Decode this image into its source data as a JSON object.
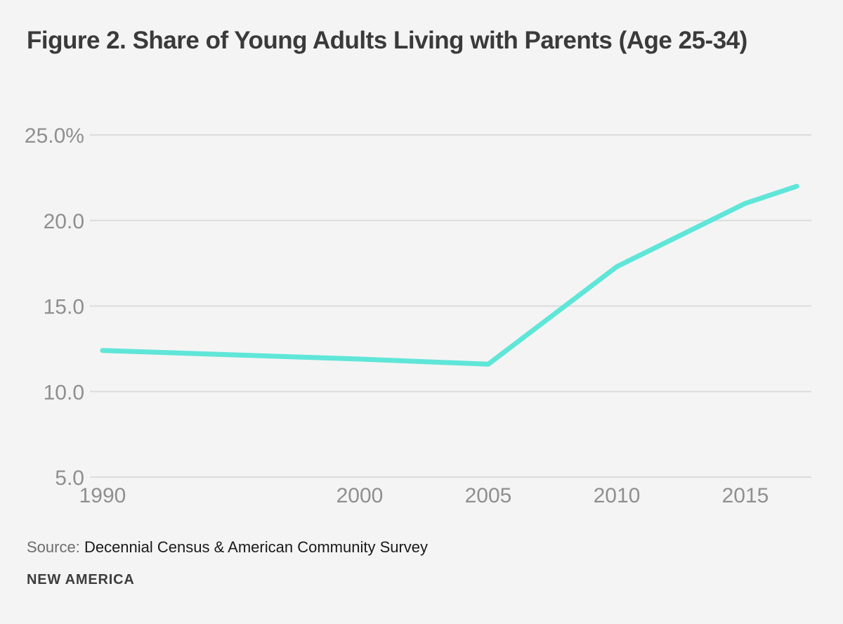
{
  "page": {
    "title": "Figure 2. Share of Young Adults Living with Parents (Age 25-34)",
    "source_label": "Source:",
    "source_text": "Decennial Census & American Community Survey",
    "logo_text": "NEW AMERICA"
  },
  "colors": {
    "background": "#f4f4f4",
    "line": "#5fe6d8",
    "grid": "#dcdcdc",
    "tick_label": "#8f8f8f",
    "title": "#3a3a3a",
    "source_label": "#6d6d6d",
    "source_text": "#191919",
    "logo": "#3d3d3d"
  },
  "chart_data": {
    "type": "line",
    "title": "Figure 2. Share of Young Adults Living with Parents (Age 25-34)",
    "series": [
      {
        "name": "Share of young adults (age 25-34) living with parents (%)",
        "x": [
          1990,
          2000,
          2005,
          2010,
          2015,
          2017
        ],
        "values": [
          12.4,
          11.9,
          11.6,
          17.3,
          21.0,
          22.0
        ]
      }
    ],
    "xlabel": "",
    "ylabel": "",
    "xlim": [
      1990,
      2017.6
    ],
    "ylim": [
      5,
      25
    ],
    "yticks": [
      {
        "value": 5,
        "label": "5.0"
      },
      {
        "value": 10,
        "label": "10.0"
      },
      {
        "value": 15,
        "label": "15.0"
      },
      {
        "value": 20,
        "label": "20.0"
      },
      {
        "value": 25,
        "label": "25.0%"
      }
    ],
    "xticks": [
      {
        "value": 1990,
        "label": "1990"
      },
      {
        "value": 2000,
        "label": "2000"
      },
      {
        "value": 2005,
        "label": "2005"
      },
      {
        "value": 2010,
        "label": "2010"
      },
      {
        "value": 2015,
        "label": "2015"
      }
    ],
    "grid": true,
    "legend": false,
    "annotations": []
  }
}
